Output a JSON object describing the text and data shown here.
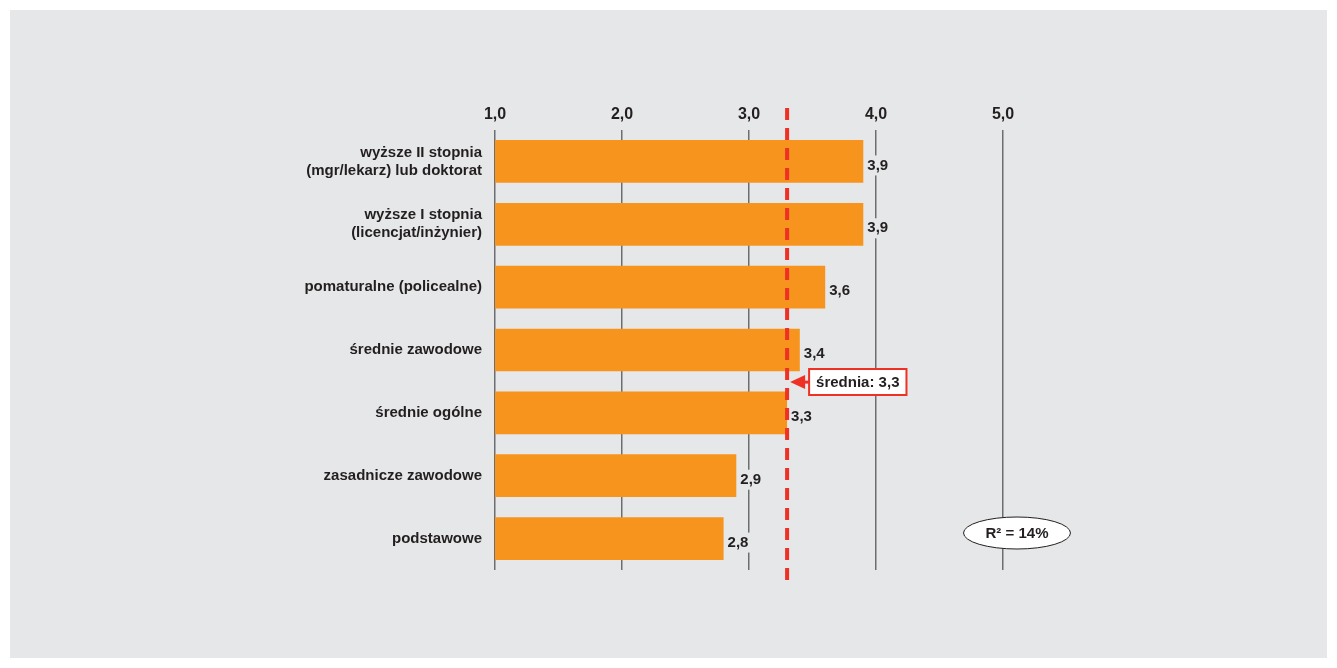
{
  "chart_data": {
    "type": "bar",
    "orientation": "horizontal",
    "categories": [
      "wyższe II stopnia (mgr/lekarz) lub doktorat",
      "wyższe I stopnia (licencjat/inżynier)",
      "pomaturalne (policealne)",
      "średnie zawodowe",
      "średnie ogólne",
      "zasadnicze zawodowe",
      "podstawowe"
    ],
    "values": [
      3.9,
      3.9,
      3.6,
      3.4,
      3.3,
      2.9,
      2.8
    ],
    "value_labels": [
      "3,9",
      "3,9",
      "3,6",
      "3,4",
      "3,3",
      "2,9",
      "2,8"
    ],
    "color": "#f7941d",
    "xlim": [
      1,
      5
    ],
    "xticks": [
      {
        "value": 1,
        "label": "1,0"
      },
      {
        "value": 2,
        "label": "2,0"
      },
      {
        "value": 3,
        "label": "3,0"
      },
      {
        "value": 4,
        "label": "4,0"
      },
      {
        "value": 5,
        "label": "5,0"
      }
    ],
    "grid": "x",
    "legend": false,
    "ref_lines": [
      {
        "axis": "x",
        "value": 3.3,
        "label": "średnia: 3,3",
        "color": "#ee3124",
        "line_style": "dashed"
      }
    ],
    "annotations": [
      "R² = 14%"
    ]
  }
}
